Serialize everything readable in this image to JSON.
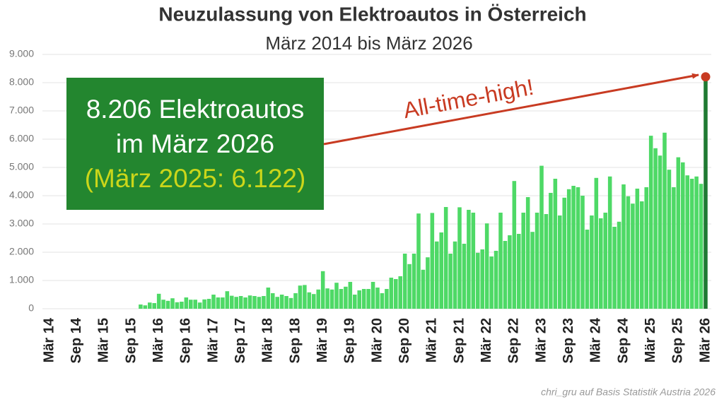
{
  "chart_data": {
    "type": "bar",
    "title": "Neuzulassung von Elektroautos in Österreich",
    "subtitle": "März 2014 bis März 2026",
    "source": "chri_gru auf Basis Statistik Austria 2026",
    "annotation_box": [
      "8.206 Elektroautos",
      "im März 2026",
      "(März 2025: 6.122)"
    ],
    "annotation_arrow": "All-time-high!",
    "categories": [
      "Mär 14",
      null,
      null,
      null,
      null,
      null,
      "Sep 14",
      null,
      null,
      null,
      null,
      null,
      "Mär 15",
      null,
      null,
      null,
      null,
      null,
      "Sep 15",
      null,
      null,
      null,
      null,
      null,
      "Mär 16",
      null,
      null,
      null,
      null,
      null,
      "Sep 16",
      null,
      null,
      null,
      null,
      null,
      "Mär 17",
      null,
      null,
      null,
      null,
      null,
      "Sep 17",
      null,
      null,
      null,
      null,
      null,
      "Mär 18",
      null,
      null,
      null,
      null,
      null,
      "Sep 18",
      null,
      null,
      null,
      null,
      null,
      "Mär 19",
      null,
      null,
      null,
      null,
      null,
      "Sep 19",
      null,
      null,
      null,
      null,
      null,
      "Mär 20",
      null,
      null,
      null,
      null,
      null,
      "Sep 20",
      null,
      null,
      null,
      null,
      null,
      "Mär 21",
      null,
      null,
      null,
      null,
      null,
      "Sep 21",
      null,
      null,
      null,
      null,
      null,
      "Mär 22",
      null,
      null,
      null,
      null,
      null,
      "Sep 22",
      null,
      null,
      null,
      null,
      null,
      "Mär 23",
      null,
      null,
      null,
      null,
      null,
      "Sep 23",
      null,
      null,
      null,
      null,
      null,
      "Mär 24",
      null,
      null,
      null,
      null,
      null,
      "Sep 24",
      null,
      null,
      null,
      null,
      null,
      "Mär 25",
      null,
      null,
      null,
      null,
      null,
      "Sep 25",
      null,
      null,
      null,
      null,
      null,
      "Mär 26"
    ],
    "series": [
      {
        "color": "#4ed966",
        "last_color": "#1f7a32",
        "values": [
          0,
          0,
          0,
          0,
          0,
          0,
          0,
          0,
          0,
          0,
          0,
          0,
          0,
          0,
          0,
          0,
          0,
          0,
          0,
          0,
          150,
          120,
          220,
          200,
          530,
          320,
          280,
          370,
          230,
          250,
          400,
          320,
          320,
          220,
          330,
          350,
          500,
          400,
          400,
          620,
          460,
          420,
          450,
          400,
          470,
          450,
          420,
          450,
          750,
          550,
          420,
          500,
          450,
          380,
          550,
          820,
          840,
          580,
          520,
          680,
          1330,
          720,
          680,
          920,
          700,
          780,
          950,
          500,
          650,
          700,
          700,
          950,
          750,
          550,
          700,
          1100,
          1050,
          1150,
          1950,
          1580,
          1950,
          3370,
          1380,
          1820,
          3390,
          2380,
          2700,
          3600,
          1950,
          2380,
          3590,
          2300,
          3500,
          3400,
          1980,
          2100,
          3020,
          1850,
          2050,
          3400,
          2400,
          2600,
          4520,
          2650,
          3400,
          3950,
          2720,
          3400,
          5060,
          3350,
          4100,
          4600,
          3300,
          3930,
          4230,
          4350,
          4300,
          4000,
          2800,
          3300,
          4630,
          3200,
          3400,
          4680,
          2900,
          3080,
          4400,
          3980,
          3720,
          4250,
          3800,
          4300,
          6122,
          5680,
          5420,
          6230,
          4920,
          4300,
          5360,
          5180,
          4720,
          4600,
          4680,
          4420,
          8206
        ]
      }
    ],
    "ylim": [
      0,
      9000
    ],
    "yticks": [
      0,
      {
        "value": 1000,
        "label": "1.000"
      },
      {
        "value": 2000,
        "label": "2.000"
      },
      {
        "value": 3000,
        "label": "3.000"
      },
      {
        "value": 4000,
        "label": "4.000"
      },
      {
        "value": 5000,
        "label": "5.000"
      },
      {
        "value": 6000,
        "label": "6.000"
      },
      {
        "value": 7000,
        "label": "7.000"
      },
      {
        "value": 8000,
        "label": "8.000"
      },
      {
        "value": 9000,
        "label": "9.000"
      }
    ],
    "grid": true
  }
}
